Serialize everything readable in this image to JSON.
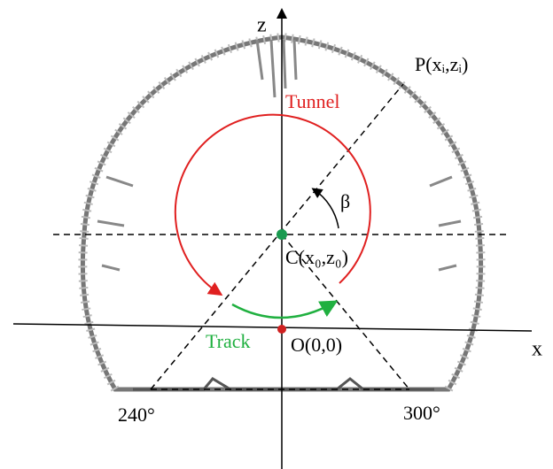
{
  "labels": {
    "z_axis": "z",
    "x_axis": "x",
    "point_p": "P(xᵢ,zᵢ)",
    "tunnel": "Tunnel",
    "angle": "β",
    "center": "C(x₀,z₀)",
    "track": "Track",
    "origin": "O(0,0)",
    "angle_240": "240°",
    "angle_300": "300°"
  }
}
